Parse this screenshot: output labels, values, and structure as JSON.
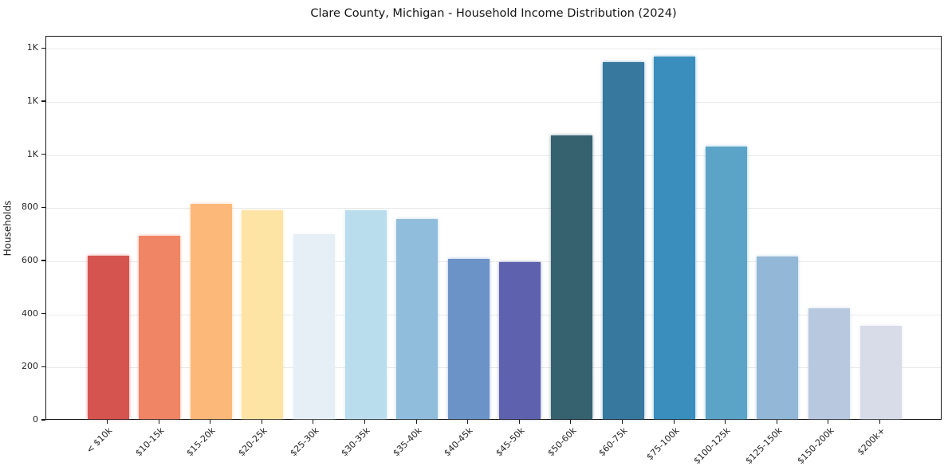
{
  "title": "Clare County, Michigan - Household Income Distribution (2024)",
  "chart_data": {
    "type": "bar",
    "title": "Clare County, Michigan - Household Income Distribution (2024)",
    "xlabel": "",
    "ylabel": "Households",
    "categories": [
      "< $10k",
      "$10-15k",
      "$15-20k",
      "$20-25k",
      "$25-30k",
      "$30-35k",
      "$35-40k",
      "$40-45k",
      "$45-50k",
      "$50-60k",
      "$60-75k",
      "$75-100k",
      "$100-125k",
      "$125-150k",
      "$150-200k",
      "$200k+"
    ],
    "values": [
      614,
      691,
      810,
      785,
      697,
      786,
      753,
      603,
      590,
      1068,
      1344,
      1366,
      1026,
      611,
      418,
      352
    ],
    "bar_colors": [
      "#d6544f",
      "#f08565",
      "#fbb878",
      "#fde3a4",
      "#e5eff5",
      "#badded",
      "#90bddc",
      "#6c93c8",
      "#5d61ae",
      "#36616f",
      "#37789f",
      "#398ebe",
      "#5ca4c7",
      "#93b8d7",
      "#b8c9df",
      "#d8dbe8"
    ],
    "ylim": [
      0,
      1446
    ],
    "grid": true,
    "legend": "none",
    "ytick_values": [
      0,
      200,
      400,
      600,
      800,
      1000,
      1200,
      1400
    ],
    "ytick_labels": [
      "0",
      "200",
      "400",
      "600",
      "800",
      "1K",
      "1K",
      "1K"
    ]
  }
}
